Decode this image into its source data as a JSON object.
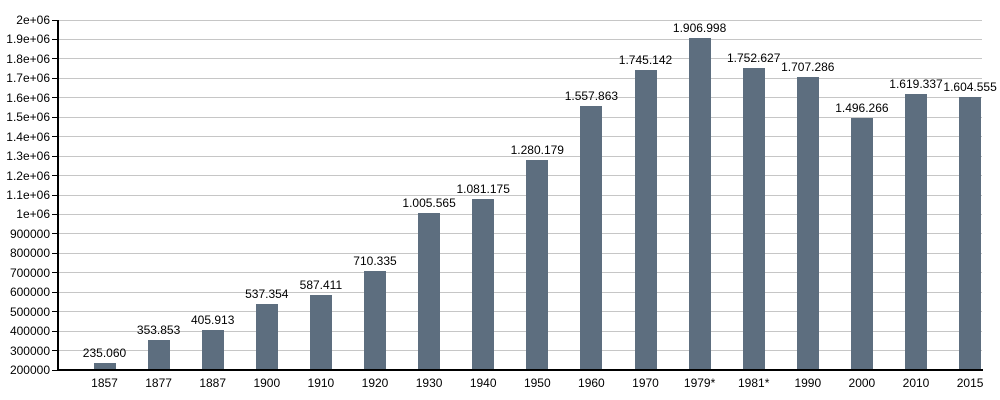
{
  "chart_data": {
    "type": "bar",
    "title": "",
    "xlabel": "",
    "ylabel": "",
    "grid": true,
    "legend": false,
    "ylim": [
      200000,
      2000000
    ],
    "bar_color": "#5d6e7f",
    "grid_color": "#c6c6c6",
    "axis_color": "#000000",
    "text_color": "#000000",
    "background_color": "#ffffff",
    "categories": [
      "1857",
      "1877",
      "1887",
      "1900",
      "1910",
      "1920",
      "1930",
      "1940",
      "1950",
      "1960",
      "1970",
      "1979*",
      "1981*",
      "1990",
      "2000",
      "2010",
      "2015"
    ],
    "values": [
      235060,
      353853,
      405913,
      537354,
      587411,
      710335,
      1005565,
      1081175,
      1280179,
      1557863,
      1745142,
      1906998,
      1752627,
      1707286,
      1496266,
      1619337,
      1604555
    ],
    "value_labels": [
      "235.060",
      "353.853",
      "405.913",
      "537.354",
      "587.411",
      "710.335",
      "1.005.565",
      "1.081.175",
      "1.280.179",
      "1.557.863",
      "1.745.142",
      "1.906.998",
      "1.752.627",
      "1.707.286",
      "1.496.266",
      "1.619.337",
      "1.604.555"
    ],
    "y_ticks": [
      {
        "value": 2000000,
        "label": "2e+06"
      },
      {
        "value": 1900000,
        "label": "1.9e+06"
      },
      {
        "value": 1800000,
        "label": "1.8e+06"
      },
      {
        "value": 1700000,
        "label": "1.7e+06"
      },
      {
        "value": 1600000,
        "label": "1.6e+06"
      },
      {
        "value": 1500000,
        "label": "1.5e+06"
      },
      {
        "value": 1400000,
        "label": "1.4e+06"
      },
      {
        "value": 1300000,
        "label": "1.3e+06"
      },
      {
        "value": 1200000,
        "label": "1.2e+06"
      },
      {
        "value": 1100000,
        "label": "1.1e+06"
      },
      {
        "value": 1000000,
        "label": "1e+06"
      },
      {
        "value": 900000,
        "label": "900000"
      },
      {
        "value": 800000,
        "label": "800000"
      },
      {
        "value": 700000,
        "label": "700000"
      },
      {
        "value": 600000,
        "label": "600000"
      },
      {
        "value": 500000,
        "label": "500000"
      },
      {
        "value": 400000,
        "label": "400000"
      },
      {
        "value": 300000,
        "label": "300000"
      },
      {
        "value": 200000,
        "label": "200000"
      }
    ]
  }
}
